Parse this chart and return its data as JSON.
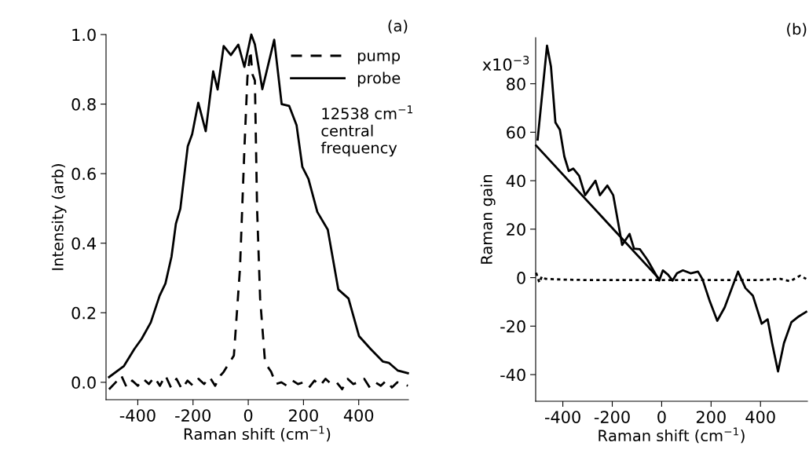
{
  "chart_data": [
    {
      "type": "line",
      "title": "(a)",
      "xlabel": "Raman shift (cm$^{−1}$)",
      "ylabel": "Intensity (arb)",
      "xlim": [
        -515,
        580
      ],
      "ylim": [
        -0.05,
        1.0
      ],
      "xticks": [
        -400,
        -200,
        0,
        200,
        400
      ],
      "yticks": [
        {
          "value": 0,
          "label": "0.0"
        },
        {
          "value": 0.2,
          "label": "0.2"
        },
        {
          "value": 0.4,
          "label": "0.4"
        },
        {
          "value": 0.6,
          "label": "0.6"
        },
        {
          "value": 0.8,
          "label": "0.8"
        },
        {
          "value": 1.0,
          "label": "1.0"
        }
      ],
      "grid": false,
      "legend": "top right",
      "annotations": [
        "12538 cm$^{−1}$\ncentral\nfrequency"
      ],
      "series": [
        {
          "name": "pump",
          "color": "#000000",
          "line_style": "dashed",
          "x": [
            -504,
            -480,
            -460,
            -440,
            -420,
            -400,
            -380,
            -360,
            -340,
            -320,
            -300,
            -280,
            -260,
            -240,
            -220,
            -200,
            -180,
            -160,
            -140,
            -120,
            -100,
            -89,
            -52,
            -30,
            -14,
            -3,
            8,
            15,
            24,
            32,
            43,
            61,
            83,
            100,
            120,
            140,
            160,
            180,
            200,
            220,
            240,
            260,
            280,
            300,
            320,
            340,
            360,
            380,
            400,
            420,
            440,
            460,
            480,
            500,
            520,
            540,
            560,
            578
          ],
          "values": [
            -0.02,
            0.0,
            0.02,
            -0.015,
            0.005,
            -0.01,
            0.01,
            -0.005,
            0.015,
            -0.01,
            0.02,
            -0.015,
            0.01,
            -0.02,
            0.005,
            -0.01,
            0.01,
            -0.005,
            0.015,
            -0.01,
            0.02,
            0.03,
            0.077,
            0.327,
            0.67,
            0.877,
            0.954,
            0.886,
            0.868,
            0.499,
            0.241,
            0.056,
            0.03,
            -0.005,
            0.0,
            -0.01,
            0.005,
            -0.005,
            0.0,
            -0.015,
            0.005,
            -0.01,
            0.01,
            -0.005,
            0.0,
            -0.02,
            0.01,
            -0.005,
            0.0,
            0.01,
            -0.015,
            0.0,
            -0.01,
            0.005,
            -0.015,
            0.0,
            -0.005,
            -0.01
          ]
        },
        {
          "name": "probe",
          "color": "#000000",
          "line_style": "solid",
          "x": [
            -504,
            -450,
            -413,
            -386,
            -353,
            -321,
            -300,
            -278,
            -262,
            -246,
            -219,
            -203,
            -181,
            -154,
            -127,
            -111,
            -89,
            -63,
            -36,
            -14,
            11,
            24,
            51,
            94,
            121,
            148,
            175,
            196,
            218,
            250,
            288,
            326,
            363,
            401,
            444,
            487,
            509,
            541,
            578
          ],
          "values": [
            0.015,
            0.047,
            0.095,
            0.125,
            0.172,
            0.249,
            0.284,
            0.361,
            0.456,
            0.499,
            0.679,
            0.714,
            0.804,
            0.722,
            0.894,
            0.842,
            0.967,
            0.941,
            0.971,
            0.907,
            1.0,
            0.972,
            0.843,
            0.985,
            0.8,
            0.795,
            0.739,
            0.619,
            0.585,
            0.49,
            0.439,
            0.267,
            0.241,
            0.133,
            0.095,
            0.06,
            0.056,
            0.034,
            0.026
          ]
        }
      ]
    },
    {
      "type": "line",
      "title": "(b)",
      "xlabel": "Raman shift (cm$^{−1}$)",
      "ylabel": "Raman gain",
      "xlim": [
        -510,
        590
      ],
      "ylim": [
        -51,
        99
      ],
      "xticks": [
        -400,
        -200,
        0,
        200,
        400
      ],
      "yticks": [
        -40,
        -20,
        0,
        20,
        40,
        60,
        80
      ],
      "annotations": [
        "x10$^{−3}$"
      ],
      "grid": false,
      "legend": false,
      "series": [
        {
          "color": "#000000",
          "line_style": "solid",
          "x": [
            -502,
            -464,
            -448,
            -430,
            -412,
            -394,
            -376,
            -358,
            -334,
            -310,
            -268,
            -250,
            -220,
            -196,
            -160,
            -130,
            -112,
            -88,
            -58,
            -10,
            5,
            26,
            44,
            62,
            86,
            117,
            147,
            165,
            195,
            225,
            255,
            309,
            339,
            369,
            405,
            429,
            447,
            471,
            495,
            525,
            555,
            585
          ],
          "values": [
            57,
            95.7,
            87,
            64,
            61,
            50,
            44,
            45,
            42,
            34,
            40,
            34,
            38,
            34,
            13.5,
            18,
            12,
            11.7,
            7.4,
            -1.2,
            3,
            1.2,
            -1.2,
            1.8,
            3,
            1.8,
            2.5,
            -0.6,
            -9.8,
            -17.8,
            -12.3,
            2.5,
            -4.3,
            -7.4,
            -19,
            -17.2,
            -27,
            -38.7,
            -27,
            -18.4,
            -16,
            -14.1
          ]
        },
        {
          "color": "#000000",
          "line_style": "solid",
          "x": [
            -508,
            -10
          ],
          "values": [
            54.5,
            -0.5
          ]
        },
        {
          "color": "#000000",
          "line_style": "dotted",
          "x": [
            -508,
            -495,
            -485,
            -470,
            -400,
            -300,
            -200,
            -100,
            0,
            100,
            200,
            300,
            400,
            480,
            520,
            560,
            585
          ],
          "values": [
            2,
            -2,
            0.5,
            -0.5,
            -0.8,
            -1,
            -1,
            -1,
            -1,
            -1,
            -1,
            -1,
            -1,
            -0.5,
            -1.5,
            0.8,
            -0.5
          ]
        }
      ]
    }
  ]
}
